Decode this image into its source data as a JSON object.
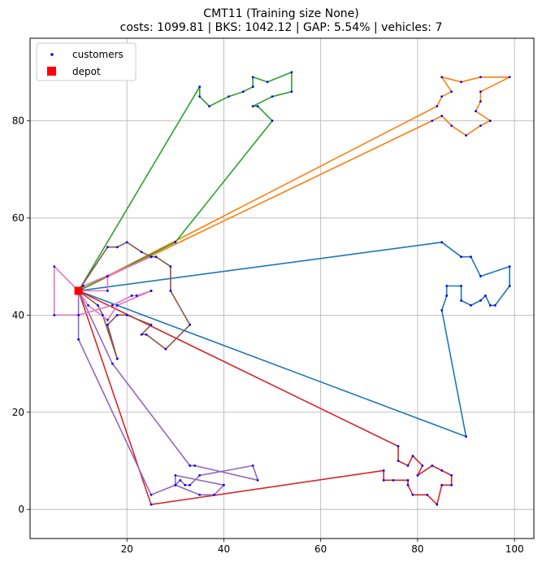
{
  "chart_data": {
    "type": "line",
    "title": "CMT11 (Training size None)",
    "subtitle": "costs: 1099.81 | BKS: 1042.12 | GAP: 5.54% | vehicles: 7",
    "xlim": [
      0,
      104
    ],
    "ylim": [
      -6,
      97
    ],
    "x_ticks": [
      20,
      40,
      60,
      80,
      100
    ],
    "y_ticks": [
      0,
      20,
      40,
      60,
      80
    ],
    "grid": true,
    "legend": {
      "placement": "top-left",
      "entries": [
        {
          "label": "customers",
          "color": "#0000ff",
          "marker": "dot"
        },
        {
          "label": "depot",
          "color": "#ff0000",
          "marker": "square"
        }
      ]
    },
    "depot": {
      "x": 10,
      "y": 45
    },
    "series": [
      {
        "color": "#1f77b4",
        "x": [
          10,
          85,
          89,
          91,
          93,
          99,
          99,
          96,
          95,
          94,
          93,
          91,
          89,
          89,
          86,
          86,
          85,
          90,
          10
        ],
        "y": [
          45,
          55,
          52,
          52,
          48,
          50,
          46,
          42,
          42,
          44,
          43,
          42,
          43,
          46,
          46,
          44,
          41,
          15,
          45
        ]
      },
      {
        "color": "#ff7f0e",
        "x": [
          10,
          84,
          85,
          87,
          85,
          89,
          93,
          99,
          93,
          93,
          92,
          95,
          93,
          90,
          87,
          85,
          83,
          10
        ],
        "y": [
          45,
          83,
          85,
          86,
          89,
          88,
          89,
          89,
          86,
          84,
          82,
          80,
          79,
          77,
          79,
          81,
          80,
          45
        ]
      },
      {
        "color": "#2ca02c",
        "x": [
          10,
          30,
          50,
          47,
          46,
          50,
          54,
          54,
          49,
          46,
          46,
          44,
          41,
          37,
          35,
          35,
          10
        ],
        "y": [
          45,
          55,
          80,
          83,
          83,
          85,
          86,
          90,
          88,
          89,
          87,
          86,
          85,
          83,
          85,
          87,
          45
        ]
      },
      {
        "color": "#d62728",
        "x": [
          10,
          76,
          76,
          78,
          79,
          81,
          80,
          83,
          85,
          87,
          87,
          85,
          84,
          82,
          79,
          78,
          78,
          75,
          73,
          73,
          25,
          10
        ],
        "y": [
          45,
          13,
          10,
          9,
          11,
          9,
          7,
          9,
          8,
          7,
          5,
          5,
          1,
          3,
          3,
          5,
          6,
          6,
          6,
          8,
          1,
          45
        ]
      },
      {
        "color": "#9467bd",
        "x": [
          10,
          17,
          33,
          34,
          47,
          46,
          35,
          33,
          32,
          31,
          30,
          30,
          40,
          38,
          35,
          30,
          25,
          10,
          10
        ],
        "y": [
          45,
          30,
          9,
          9,
          6,
          9,
          7,
          5,
          5,
          6,
          5,
          7,
          5,
          3,
          3,
          5,
          3,
          35,
          45
        ]
      },
      {
        "color": "#8c564b",
        "x": [
          10,
          16,
          18,
          20,
          23,
          25,
          26,
          29,
          29,
          33,
          28,
          24,
          23,
          25,
          20,
          18,
          16,
          18,
          18,
          15,
          14,
          10
        ],
        "y": [
          45,
          54,
          54,
          55,
          53,
          52,
          52,
          50,
          45,
          38,
          33,
          36,
          36,
          38,
          40,
          40,
          38,
          31,
          31,
          40,
          42,
          45
        ]
      },
      {
        "color": "#e377c2",
        "x": [
          10,
          11,
          25,
          25,
          16,
          16,
          10,
          5,
          5,
          10,
          17,
          21,
          22,
          25,
          25,
          18,
          16,
          12,
          10
        ],
        "y": [
          45,
          46,
          52,
          52,
          48,
          45,
          45,
          50,
          40,
          40,
          42,
          44,
          44,
          45,
          45,
          42,
          39,
          42,
          45
        ]
      }
    ]
  }
}
